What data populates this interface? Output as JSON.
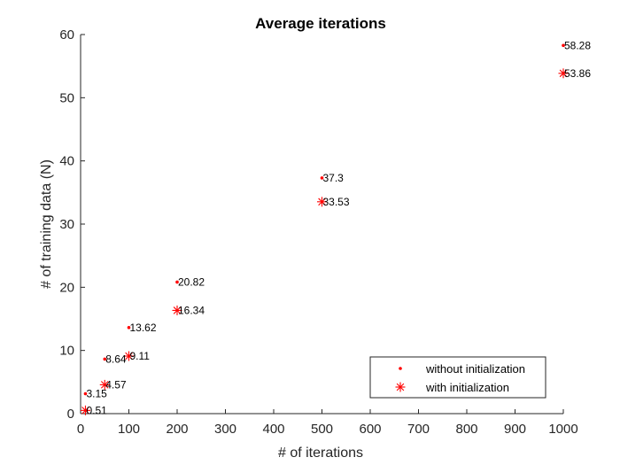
{
  "chart_data": {
    "type": "scatter",
    "title": "Average iterations",
    "xlabel": "# of iterations",
    "ylabel": "# of training data (N)",
    "xlim": [
      0,
      1000
    ],
    "ylim": [
      0,
      60
    ],
    "xticks": [
      0,
      100,
      200,
      300,
      400,
      500,
      600,
      700,
      800,
      900,
      1000
    ],
    "yticks": [
      0,
      10,
      20,
      30,
      40,
      50,
      60
    ],
    "grid": false,
    "legend_position": "bottom-right",
    "series": [
      {
        "name": "without initialization",
        "marker": "dot",
        "color": "#ff0000",
        "points": [
          {
            "x": 10,
            "y": 3.15,
            "label": "3.15"
          },
          {
            "x": 50,
            "y": 8.64,
            "label": "8.64"
          },
          {
            "x": 100,
            "y": 13.62,
            "label": "13.62"
          },
          {
            "x": 200,
            "y": 20.82,
            "label": "20.82"
          },
          {
            "x": 500,
            "y": 37.3,
            "label": "37.3"
          },
          {
            "x": 1000,
            "y": 58.28,
            "label": "58.28"
          }
        ]
      },
      {
        "name": "with initialization",
        "marker": "asterisk",
        "color": "#ff0000",
        "points": [
          {
            "x": 10,
            "y": 0.51,
            "label": "0.51"
          },
          {
            "x": 50,
            "y": 4.57,
            "label": "4.57"
          },
          {
            "x": 100,
            "y": 9.11,
            "label": "9.11"
          },
          {
            "x": 200,
            "y": 16.34,
            "label": "16.34"
          },
          {
            "x": 500,
            "y": 33.53,
            "label": "33.53"
          },
          {
            "x": 1000,
            "y": 53.86,
            "label": "53.86"
          }
        ]
      }
    ]
  }
}
